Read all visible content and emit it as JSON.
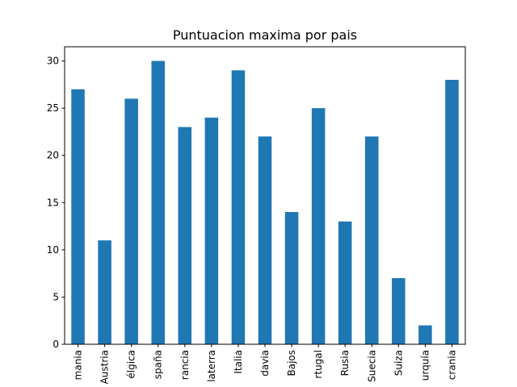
{
  "chart_data": {
    "type": "bar",
    "title": "Puntuacion maxima por pais",
    "xlabel": "",
    "ylabel": "",
    "ylim": [
      0,
      31.5
    ],
    "yticks": [
      0,
      5,
      10,
      15,
      20,
      25,
      30
    ],
    "grid": false,
    "legend": "none",
    "bar_color": "#1f77b4",
    "categories": [
      "Alemania",
      "Austria",
      "Bélgica",
      "España",
      "Francia",
      "Inglaterra",
      "Italia",
      "Moldavia",
      "Países Bajos",
      "Portugal",
      "Rusia",
      "Suecia",
      "Suiza",
      "Turquía",
      "Ucrania"
    ],
    "tick_labels_visible": [
      "mania",
      "Austria",
      "élgica",
      "spaña",
      "rancia",
      "laterra",
      "Italia",
      "davia",
      "Bajos",
      "rtugal",
      "Rusia",
      "Suecia",
      "Suiza",
      "urquía",
      "crania"
    ],
    "values": [
      27,
      11,
      26,
      30,
      23,
      24,
      29,
      22,
      14,
      25,
      13,
      22,
      7,
      2,
      28
    ]
  }
}
